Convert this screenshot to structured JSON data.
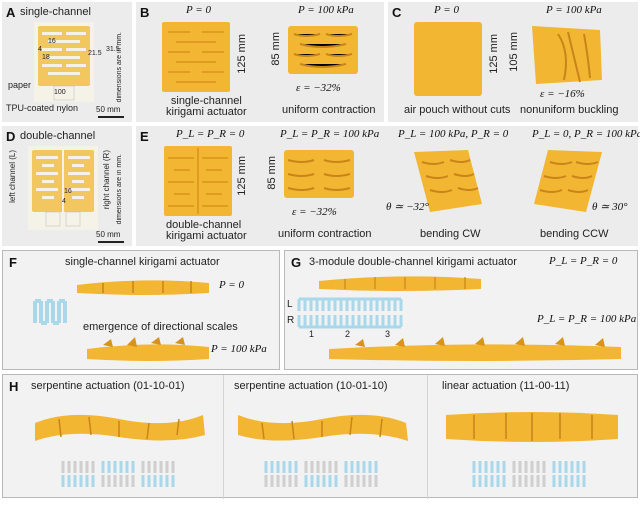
{
  "panels": {
    "A": {
      "tag": "A",
      "title": "single-channel",
      "dims": [
        "16",
        "4",
        "18",
        "21.5",
        "31.5",
        "100"
      ],
      "dim_note": "dimensions are in mm.",
      "paper_label": "paper",
      "nylon_label": "TPU-coated nylon",
      "scale": "50 mm"
    },
    "B": {
      "tag": "B",
      "p_left": "P = 0",
      "p_right": "P = 100 kPa",
      "height_left": "125 mm",
      "height_right": "85 mm",
      "caption_left": "single-channel\nkirigami actuator",
      "caption_right": "uniform contraction",
      "strain": "ε = −32%"
    },
    "C": {
      "tag": "C",
      "p_left": "P = 0",
      "p_right": "P = 100 kPa",
      "height_left": "125 mm",
      "height_right": "105 mm",
      "caption_left": "air pouch without cuts",
      "caption_right": "nonuniform buckling",
      "strain": "ε = −16%"
    },
    "D": {
      "tag": "D",
      "title": "double-channel",
      "left_channel": "left channel (L)",
      "right_channel": "right channel (R)",
      "dim_note": "dimensions are in mm.",
      "dims": [
        "16",
        "4"
      ],
      "scale": "50 mm"
    },
    "E": {
      "tag": "E",
      "p1": "P_L = P_R = 0",
      "p2": "P_L = P_R = 100 kPa",
      "p3": "P_L = 100 kPa, P_R = 0",
      "p4": "P_L = 0, P_R = 100 kPa",
      "height_left": "125 mm",
      "height_right": "85 mm",
      "caption1": "double-channel\nkirigami actuator",
      "caption2": "uniform contraction",
      "caption3": "bending CW",
      "caption4": "bending CCW",
      "strain": "ε = −32%",
      "theta_cw": "θ ≃ −32°",
      "theta_ccw": "θ ≃ 30°"
    },
    "F": {
      "tag": "F",
      "title": "single-channel kirigami actuator",
      "p0": "P = 0",
      "p1": "P = 100 kPa",
      "scales": "emergence of directional scales"
    },
    "G": {
      "tag": "G",
      "title": "3-module double-channel kirigami actuator",
      "p0": "P_L = P_R = 0",
      "p1": "P_L = P_R = 100 kPa",
      "L": "L",
      "R": "R",
      "modules": [
        "1",
        "2",
        "3"
      ]
    },
    "H": {
      "tag": "H",
      "c1": "serpentine actuation (01-10-01)",
      "c2": "serpentine actuation (10-01-10)",
      "c3": "linear actuation (11-00-11)"
    }
  },
  "colors": {
    "actuator": "#f2b632",
    "actuator_dark": "#d9931a",
    "channel_blue": "#a8d8ea",
    "bg_gray": "#e9e9e9"
  }
}
